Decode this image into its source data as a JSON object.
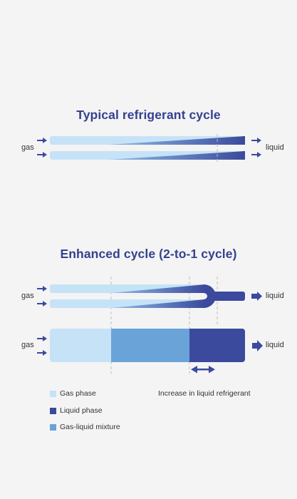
{
  "colors": {
    "gas": "#c6e2f7",
    "liquid": "#3b4a9c",
    "mixture": "#6aa3d8",
    "arrow": "#3b4a9c",
    "title": "#34418f",
    "background": "#f4f4f5",
    "guide": "#bbbbbb"
  },
  "typical": {
    "title": "Typical refrigerant cycle",
    "inlet_label": "gas",
    "outlet_label": "liquid"
  },
  "enhanced": {
    "title": "Enhanced cycle (2-to-1 cycle)",
    "tube_inlet_label": "gas",
    "tube_outlet_label": "liquid",
    "block_inlet_label": "gas",
    "block_outlet_label": "liquid"
  },
  "legend": {
    "gas_phase": "Gas phase",
    "liquid_phase": "Liquid phase",
    "mixture": "Gas-liquid mixture",
    "increase_note": "Increase in liquid refrigerant"
  }
}
